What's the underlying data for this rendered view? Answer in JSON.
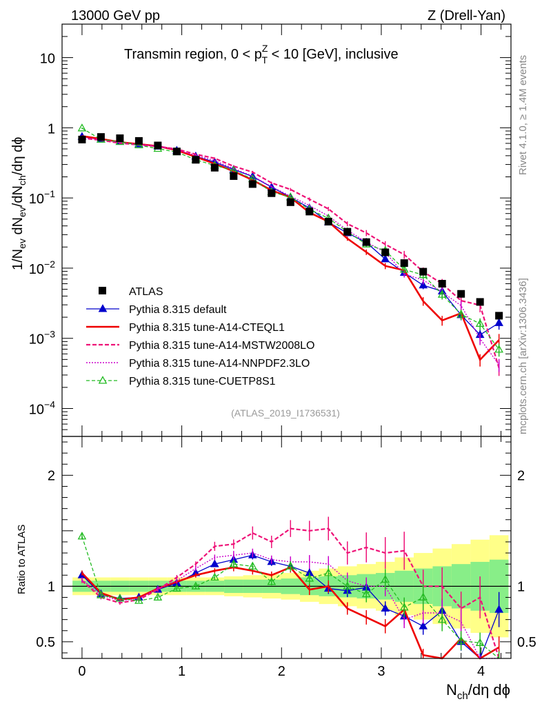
{
  "header": {
    "left": "13000 GeV pp",
    "right": "Z (Drell-Yan)",
    "side_top": "Rivet 4.1.0, ≥ 1.4M events",
    "side_bottom": "mcplots.cern.ch [arXiv:1306.3436]"
  },
  "chart_data": {
    "type": "line",
    "title": {
      "pre": "Transmin region, 0 < p",
      "sup": "Z",
      "sub": "T",
      "post": " < 10 [GeV], inclusive"
    },
    "analysis_label": "(ATLAS_2019_I1736531)",
    "ylabel_main": {
      "t1": "1/N",
      "s1": "ev",
      "t2": " dN",
      "s2": "ev",
      "t3": "/dN",
      "s3": "ch",
      "t4": "/dη dϕ"
    },
    "ylabel_ratio": "Ratio to ATLAS",
    "xlabel": {
      "t1": "N",
      "s1": "ch",
      "t2": "/dη dϕ"
    },
    "xlim": [
      -0.2,
      4.3
    ],
    "ylim_main": [
      4e-05,
      30
    ],
    "ylim_ratio": [
      0.35,
      2.35
    ],
    "x_ticks": [
      "0",
      "1",
      "2",
      "3",
      "4"
    ],
    "y_main_ticks": [
      {
        "value": 10,
        "base": "10",
        "exp": ""
      },
      {
        "value": 1,
        "base": "1",
        "exp": ""
      },
      {
        "value": 0.1,
        "base": "10",
        "exp": "−1"
      },
      {
        "value": 0.01,
        "base": "10",
        "exp": "−2"
      },
      {
        "value": 0.001,
        "base": "10",
        "exp": "−3"
      },
      {
        "value": 0.0001,
        "base": "10",
        "exp": "−4"
      }
    ],
    "y_ratio_ticks": [
      "0.5",
      "1",
      "2"
    ],
    "x": [
      0.0,
      0.19,
      0.38,
      0.57,
      0.76,
      0.95,
      1.14,
      1.33,
      1.52,
      1.71,
      1.9,
      2.09,
      2.28,
      2.47,
      2.66,
      2.85,
      3.04,
      3.23,
      3.42,
      3.61,
      3.8,
      3.99,
      4.18
    ],
    "data": {
      "name": "ATLAS",
      "values": [
        0.68,
        0.74,
        0.71,
        0.65,
        0.56,
        0.46,
        0.35,
        0.27,
        0.205,
        0.158,
        0.117,
        0.087,
        0.064,
        0.046,
        0.033,
        0.0235,
        0.0168,
        0.0118,
        0.0089,
        0.006,
        0.0043,
        0.0033,
        0.0021
      ],
      "band_inner": [
        0.05,
        0.05,
        0.05,
        0.05,
        0.05,
        0.05,
        0.05,
        0.05,
        0.06,
        0.06,
        0.06,
        0.07,
        0.08,
        0.09,
        0.1,
        0.11,
        0.12,
        0.14,
        0.16,
        0.18,
        0.2,
        0.22,
        0.24
      ],
      "band_outer": [
        0.08,
        0.08,
        0.08,
        0.08,
        0.08,
        0.08,
        0.08,
        0.08,
        0.09,
        0.1,
        0.11,
        0.12,
        0.14,
        0.16,
        0.18,
        0.2,
        0.22,
        0.26,
        0.3,
        0.34,
        0.38,
        0.42,
        0.46
      ]
    },
    "series": [
      {
        "name": "Pythia 8.315 default",
        "color": "#0000cc",
        "dash": "",
        "marker": "triangle-filled",
        "ratio": [
          1.1,
          0.93,
          0.89,
          0.9,
          0.97,
          1.03,
          1.12,
          1.2,
          1.24,
          1.28,
          1.22,
          1.18,
          1.12,
          0.98,
          0.96,
          0.99,
          0.8,
          0.73,
          0.64,
          0.78,
          0.5,
          0.34,
          0.79
        ],
        "err": [
          0.02,
          0.02,
          0.02,
          0.02,
          0.02,
          0.02,
          0.02,
          0.02,
          0.02,
          0.03,
          0.03,
          0.03,
          0.04,
          0.05,
          0.06,
          0.07,
          0.08,
          0.1,
          0.12,
          0.14,
          0.16,
          0.18,
          0.2
        ]
      },
      {
        "name": "Pythia 8.315 tune-A14-CTEQL1",
        "color": "#ee0000",
        "dash": "",
        "marker": "none",
        "width": 2.6,
        "ratio": [
          1.12,
          0.94,
          0.88,
          0.9,
          0.98,
          1.04,
          1.1,
          1.14,
          1.17,
          1.14,
          1.1,
          1.17,
          0.97,
          1.0,
          0.8,
          0.72,
          0.64,
          0.79,
          0.38,
          0.3,
          0.53,
          0.15,
          0.45
        ],
        "err": [
          0.02,
          0.02,
          0.02,
          0.02,
          0.02,
          0.02,
          0.02,
          0.02,
          0.03,
          0.03,
          0.03,
          0.04,
          0.05,
          0.06,
          0.07,
          0.09,
          0.1,
          0.12,
          0.14,
          0.16,
          0.18,
          0.2,
          0.22
        ]
      },
      {
        "name": "Pythia 8.315 tune-A14-MSTW2008LO",
        "color": "#ee1177",
        "dash": "6,3",
        "marker": "none",
        "width": 2.2,
        "ratio": [
          1.05,
          0.9,
          0.85,
          0.88,
          0.97,
          1.08,
          1.2,
          1.36,
          1.38,
          1.48,
          1.4,
          1.52,
          1.5,
          1.52,
          1.3,
          1.35,
          1.3,
          1.32,
          1.0,
          1.0,
          0.8,
          0.9,
          0.18
        ],
        "err": [
          0.02,
          0.02,
          0.02,
          0.02,
          0.02,
          0.02,
          0.02,
          0.03,
          0.03,
          0.04,
          0.04,
          0.05,
          0.06,
          0.07,
          0.08,
          0.1,
          0.11,
          0.13,
          0.15,
          0.17,
          0.19,
          0.21,
          0.23
        ]
      },
      {
        "name": "Pythia 8.315 tune-A14-NNPDF2.3LO",
        "color": "#cc00cc",
        "dash": "2,2",
        "marker": "none",
        "width": 1.4,
        "ratio": [
          1.06,
          0.92,
          0.87,
          0.89,
          0.98,
          1.05,
          1.16,
          1.26,
          1.28,
          1.3,
          1.24,
          1.22,
          1.22,
          1.2,
          1.05,
          1.0,
          1.0,
          0.7,
          0.76,
          0.76,
          0.68,
          0.3,
          0.2
        ],
        "err": [
          0.02,
          0.02,
          0.02,
          0.02,
          0.02,
          0.02,
          0.02,
          0.02,
          0.03,
          0.03,
          0.03,
          0.04,
          0.05,
          0.06,
          0.07,
          0.08,
          0.09,
          0.11,
          0.13,
          0.15,
          0.17,
          0.19,
          0.21
        ]
      },
      {
        "name": "Pythia 8.315 tune-CUETP8S1",
        "color": "#22bb22",
        "dash": "5,3",
        "marker": "triangle-open",
        "ratio": [
          1.45,
          0.92,
          0.89,
          0.87,
          0.9,
          0.98,
          1.0,
          1.08,
          1.2,
          1.18,
          1.04,
          1.18,
          1.07,
          1.12,
          1.0,
          0.93,
          1.06,
          0.81,
          0.9,
          0.7,
          0.51,
          0.49,
          0.33
        ],
        "err": [
          0.02,
          0.02,
          0.02,
          0.02,
          0.02,
          0.02,
          0.02,
          0.02,
          0.03,
          0.03,
          0.03,
          0.04,
          0.05,
          0.06,
          0.07,
          0.08,
          0.09,
          0.11,
          0.13,
          0.15,
          0.17,
          0.19,
          0.21
        ]
      }
    ],
    "legend_position": "lower-left"
  }
}
